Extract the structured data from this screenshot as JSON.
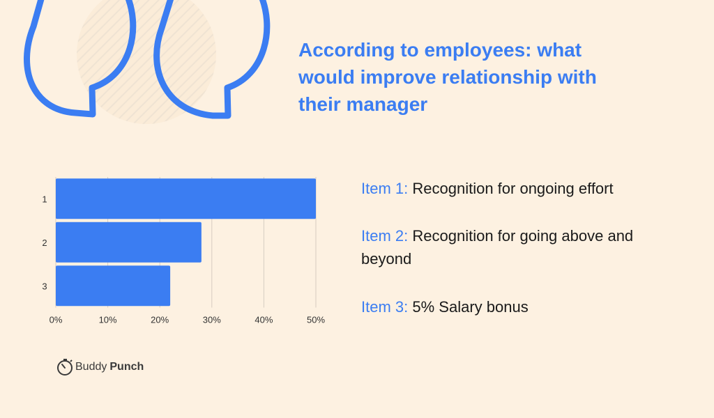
{
  "colors": {
    "background": "#fdf1e1",
    "accent": "#3b7df2",
    "bar": "#3b7df2",
    "text": "#1a1a1a"
  },
  "icons": {
    "decoration": "quote-marks-icon",
    "brand": "stopwatch-icon"
  },
  "title": "According to employees: what would improve relationship with their manager",
  "legend": [
    {
      "key": "Item 1:",
      "text": "Recognition for ongoing effort"
    },
    {
      "key": "Item 2:",
      "text": "Recognition for going above and beyond"
    },
    {
      "key": "Item 3:",
      "text": "5% Salary bonus"
    }
  ],
  "brand": {
    "name_part1": "Buddy",
    "name_part2": "Punch"
  },
  "chart_data": {
    "type": "bar",
    "orientation": "horizontal",
    "categories": [
      "1",
      "2",
      "3"
    ],
    "values": [
      50,
      28,
      22
    ],
    "xlim": [
      0,
      50
    ],
    "xticks": [
      "0%",
      "10%",
      "20%",
      "30%",
      "40%",
      "50%"
    ],
    "grid": true,
    "legend_position": "right"
  }
}
